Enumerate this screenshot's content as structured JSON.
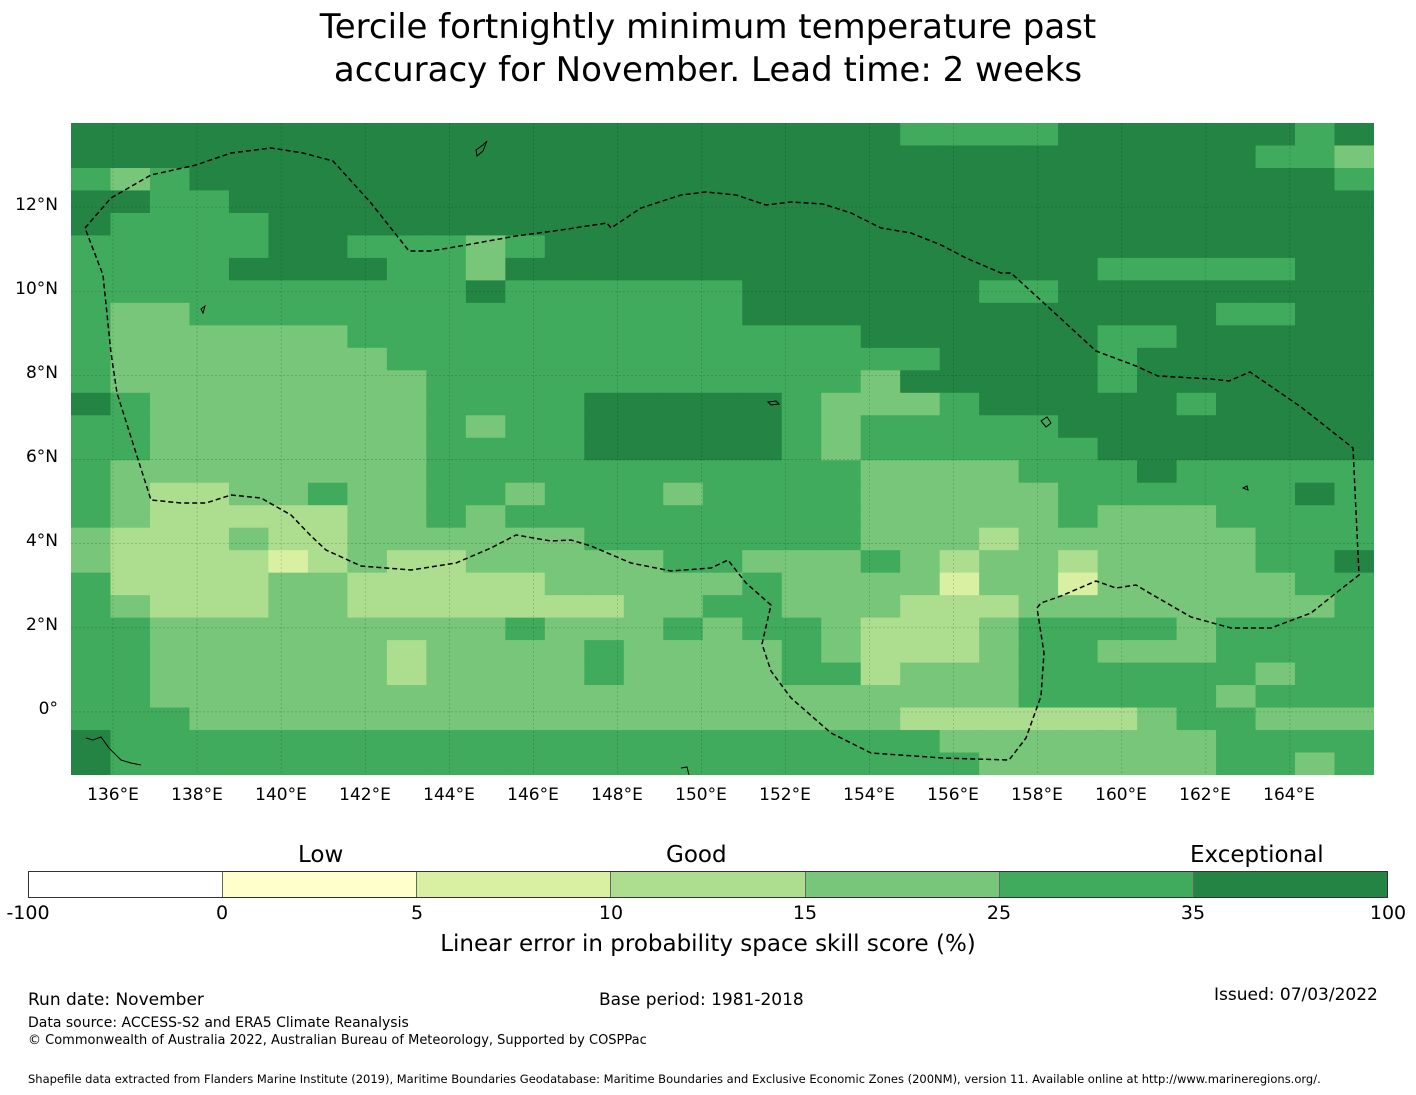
{
  "title_line1": "Tercile fortnightly minimum temperature past",
  "title_line2": "accuracy for November. Lead time: 2 weeks",
  "map": {
    "lat_ticks": [
      "12°N",
      "10°N",
      "8°N",
      "6°N",
      "4°N",
      "2°N",
      "0°"
    ],
    "lon_ticks": [
      "136°E",
      "138°E",
      "140°E",
      "142°E",
      "144°E",
      "146°E",
      "148°E",
      "150°E",
      "152°E",
      "154°E",
      "156°E",
      "158°E",
      "160°E",
      "162°E",
      "164°E"
    ],
    "lon_range": [
      135,
      166
    ],
    "lat_range": [
      -1.5,
      14.0
    ],
    "grid_step_deg": 0.833,
    "palette": [
      "#ffffcc",
      "#d9f0a3",
      "#addd8e",
      "#78c679",
      "#41ab5d",
      "#238443"
    ],
    "skill_grid": [
      "555555555555555555555444455555545",
      "555555555555555555555555555555443",
      "434555555555555555555555555555554",
      "554455555555555555555555555555555",
      "544445555555555555555555555555555",
      "444445544434555555555555555555555",
      "444455554435555555555555554444455",
      "444444444454444445555554455555555",
      "433444444444444445555555555554455",
      "433333344444444444445555554455555",
      "433333334444444444444455554555555",
      "433333333444444444443555554555555",
      "543333333444455555433345555545555",
      "443333333434455555434444455555555",
      "443333333444455555434444445555555",
      "433333333444444444443333444544444",
      "432233433443444344443333344444454",
      "432222233434444444443333343334444",
      "322232233333344444443332333333444",
      "322221232233333443334323323333445",
      "422223322222333334333313313333344",
      "432223322222223344333222333333334",
      "443333333334333434432223444434444",
      "443333332333343333432223443334444",
      "443333332333343333442333444444344",
      "443333333333333333333333444443444",
      "444333333333333333333222222344333",
      "544444444444444444444433333334444",
      "544444444444444444444443333334434"
    ],
    "dark_band_grid": [
      "55555555555555",
      "55555555555555"
    ]
  },
  "categories": [
    "Low",
    "Good",
    "Exceptional"
  ],
  "colorbar": {
    "colors": [
      "#ffffff",
      "#ffffcc",
      "#d9f0a3",
      "#addd8e",
      "#78c679",
      "#41ab5d",
      "#238443"
    ],
    "ticks": [
      "-100",
      "0",
      "5",
      "10",
      "15",
      "25",
      "35",
      "100"
    ],
    "label": "Linear error in probability space skill score (%)"
  },
  "footer": {
    "run_date": "Run date: November",
    "base_period": "Base period: 1981-2018",
    "issued": "Issued: 07/03/2022",
    "data_source": "Data source: ACCESS-S2 and ERA5 Climate Reanalysis",
    "copyright": "© Commonwealth of Australia 2022, Australian Bureau of Meteorology, Supported by COSPPac",
    "shapefile": "Shapefile data extracted from Flanders Marine Institute (2019), Maritime Boundaries Geodatabase: Maritime Boundaries and Exclusive Economic Zones (200NM), version 11. Available online at http://www.marineregions.org/."
  }
}
